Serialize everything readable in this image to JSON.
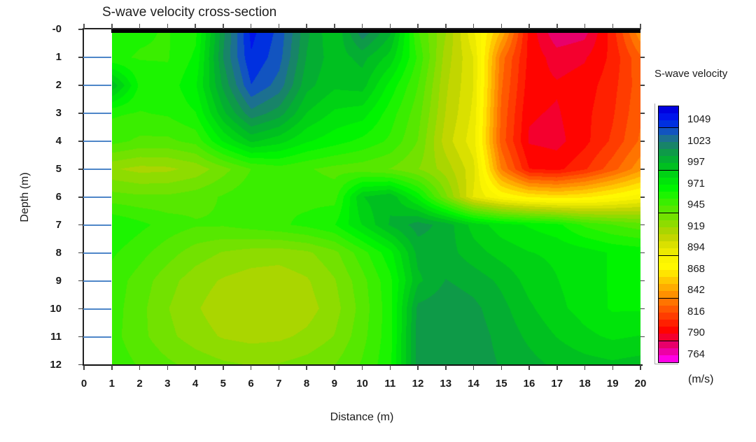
{
  "title": "S-wave velocity cross-section",
  "x_axis": {
    "label": "Distance (m)",
    "ticks": [
      "0",
      "1",
      "2",
      "3",
      "4",
      "5",
      "6",
      "7",
      "8",
      "9",
      "10",
      "11",
      "12",
      "13",
      "14",
      "15",
      "16",
      "17",
      "18",
      "19",
      "20"
    ]
  },
  "y_axis": {
    "label": "Depth (m)",
    "ticks": [
      "-0",
      "1",
      "2",
      "3",
      "4",
      "5",
      "6",
      "7",
      "8",
      "9",
      "10",
      "11",
      "12"
    ]
  },
  "colorbar": {
    "title": "S-wave velocity",
    "units": "(m/s)",
    "labels": [
      "1049",
      "1023",
      "997",
      "971",
      "945",
      "919",
      "894",
      "868",
      "842",
      "816",
      "790",
      "764"
    ],
    "cell_colors": [
      "#0000E0",
      "#0014EC",
      "#0030E0",
      "#1254C0",
      "#1C7090",
      "#188468",
      "#0E9A48",
      "#04AE32",
      "#00C020",
      "#00D214",
      "#00E40A",
      "#00F400",
      "#1CF400",
      "#3AEE00",
      "#56E800",
      "#72E200",
      "#8EDC00",
      "#AAD600",
      "#C2D600",
      "#DAE000",
      "#ECEA00",
      "#FAF400",
      "#FFF800",
      "#FFE400",
      "#FFC800",
      "#FFAC00",
      "#FF9000",
      "#FF7400",
      "#FF5800",
      "#FF3C00",
      "#FF2000",
      "#FF0400",
      "#F4002E",
      "#E8006A",
      "#EE00A6",
      "#FF00E6"
    ]
  },
  "style": {
    "gridline_color": "#4e86c8",
    "axis_color": "#222222",
    "top_band_color": "#000000"
  },
  "chart_data": {
    "type": "heatmap",
    "title": "S-wave velocity cross-section",
    "xlabel": "Distance (m)",
    "ylabel": "Depth (m)",
    "legend_title": "S-wave velocity (m/s)",
    "legend_position": "right",
    "grid": false,
    "x_range_m": [
      0,
      20
    ],
    "data_x_m": [
      1,
      2,
      3,
      4,
      5,
      6,
      7,
      8,
      9,
      10,
      11,
      12,
      13,
      14,
      15,
      16,
      17,
      18,
      19,
      20
    ],
    "depth_m": [
      0,
      1,
      2,
      3,
      4,
      5,
      6,
      7,
      8,
      9,
      10,
      11,
      12
    ],
    "value_at_top": 1066.33,
    "value_step": 8.6667,
    "colorbar_tick_values": [
      1049,
      1023,
      997,
      971,
      945,
      919,
      894,
      868,
      842,
      816,
      790,
      764
    ],
    "values_mps": [
      [
        958,
        955,
        953,
        960,
        1012,
        1052,
        1038,
        1008,
        988,
        1022,
        1000,
        945,
        920,
        885,
        850,
        795,
        772,
        776,
        802,
        840
      ],
      [
        955,
        953,
        953,
        964,
        1015,
        1048,
        1035,
        1005,
        992,
        1000,
        985,
        952,
        915,
        893,
        828,
        795,
        785,
        788,
        800,
        822
      ],
      [
        995,
        960,
        957,
        970,
        1008,
        1040,
        1028,
        1000,
        990,
        992,
        968,
        945,
        912,
        893,
        825,
        793,
        790,
        793,
        803,
        820
      ],
      [
        955,
        953,
        955,
        962,
        995,
        1020,
        1010,
        988,
        978,
        975,
        958,
        940,
        910,
        891,
        822,
        790,
        788,
        795,
        805,
        822
      ],
      [
        948,
        943,
        943,
        948,
        972,
        990,
        983,
        972,
        966,
        960,
        952,
        936,
        906,
        888,
        820,
        788,
        786,
        795,
        808,
        825
      ],
      [
        920,
        916,
        917,
        922,
        933,
        945,
        950,
        946,
        942,
        940,
        936,
        928,
        915,
        896,
        832,
        798,
        795,
        805,
        820,
        838
      ],
      [
        940,
        938,
        938,
        941,
        946,
        951,
        953,
        951,
        950,
        988,
        995,
        968,
        930,
        892,
        875,
        866,
        862,
        865,
        872,
        880
      ],
      [
        962,
        956,
        950,
        946,
        946,
        949,
        952,
        956,
        962,
        980,
        998,
        1010,
        1002,
        985,
        975,
        970,
        965,
        952,
        945,
        940
      ],
      [
        955,
        948,
        940,
        932,
        927,
        924,
        923,
        926,
        934,
        950,
        968,
        1000,
        1001,
        992,
        985,
        980,
        978,
        975,
        970,
        968
      ],
      [
        950,
        941,
        931,
        923,
        918,
        915,
        914,
        918,
        927,
        942,
        960,
        995,
        1006,
        1002,
        995,
        985,
        980,
        975,
        970,
        968
      ],
      [
        949,
        939,
        928,
        920,
        914,
        911,
        911,
        915,
        924,
        940,
        959,
        1008,
        1012,
        1008,
        1000,
        990,
        982,
        976,
        970,
        970
      ],
      [
        948,
        939,
        930,
        923,
        918,
        916,
        917,
        921,
        928,
        942,
        959,
        1010,
        1013,
        1010,
        1003,
        995,
        988,
        982,
        978,
        980
      ],
      [
        950,
        944,
        938,
        933,
        929,
        927,
        928,
        931,
        936,
        946,
        960,
        1010,
        1013,
        1010,
        1005,
        1000,
        995,
        992,
        990,
        992
      ]
    ]
  }
}
